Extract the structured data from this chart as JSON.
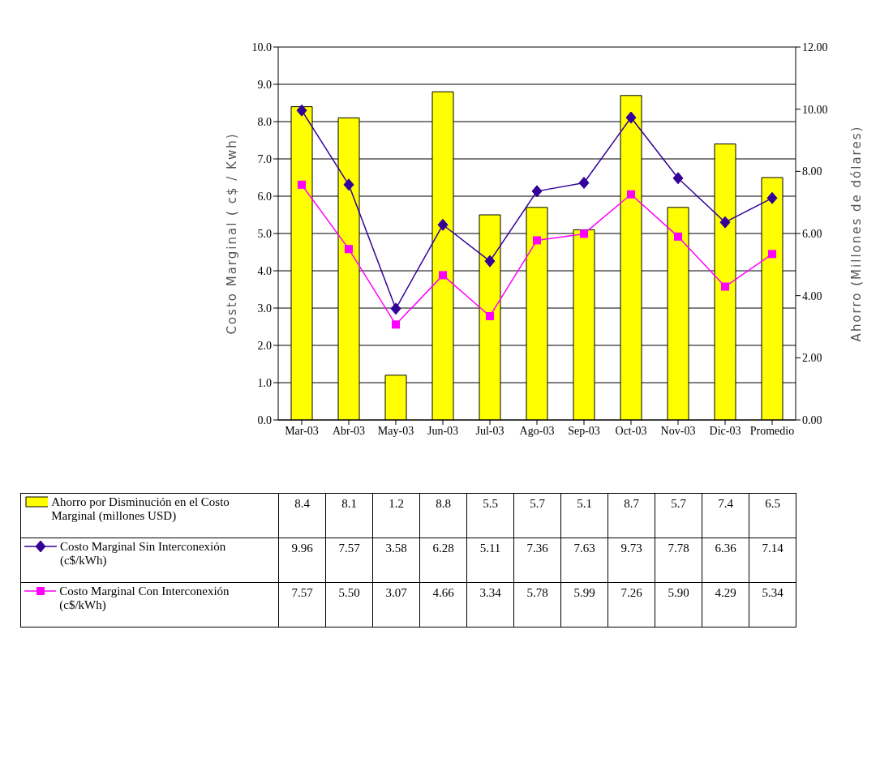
{
  "chart_data": {
    "type": "bar",
    "ylabel": "Costo Marginal ( c$ / Kwh)",
    "y2label": "Ahorro (Millones de dólares)",
    "categories": [
      "Mar-03",
      "Abr-03",
      "May-03",
      "Jun-03",
      "Jul-03",
      "Ago-03",
      "Sep-03",
      "Oct-03",
      "Nov-03",
      "Dic-03",
      "Promedio"
    ],
    "series": [
      {
        "name": "Ahorro por Disminución en el Costo Marginal (millones USD)",
        "axis": "y",
        "color": "#ffff00",
        "values": [
          8.4,
          8.1,
          1.2,
          8.8,
          5.5,
          5.7,
          5.1,
          8.7,
          5.7,
          7.4,
          6.5
        ],
        "value_labels": [
          "8.4",
          "8.1",
          "1.2",
          "8.8",
          "5.5",
          "5.7",
          "5.1",
          "8.7",
          "5.7",
          "7.4",
          "6.5"
        ]
      },
      {
        "name": "Costo Marginal Sin Interconexión (c$/kWh)",
        "type": "line",
        "axis": "y2",
        "color": "#330099",
        "marker": "diamond",
        "values": [
          9.96,
          7.57,
          3.58,
          6.28,
          5.11,
          7.36,
          7.63,
          9.73,
          7.78,
          6.36,
          7.14
        ],
        "value_labels": [
          "9.96",
          "7.57",
          "3.58",
          "6.28",
          "5.11",
          "7.36",
          "7.63",
          "9.73",
          "7.78",
          "6.36",
          "7.14"
        ]
      },
      {
        "name": "Costo Marginal Con Interconexión (c$/kWh)",
        "type": "line",
        "axis": "y2",
        "color": "#ff00ff",
        "marker": "square",
        "values": [
          7.57,
          5.5,
          3.07,
          4.66,
          3.34,
          5.78,
          5.99,
          7.26,
          5.9,
          4.29,
          5.34
        ],
        "value_labels": [
          "7.57",
          "5.50",
          "3.07",
          "4.66",
          "3.34",
          "5.78",
          "5.99",
          "7.26",
          "5.90",
          "4.29",
          "5.34"
        ]
      }
    ],
    "ylim": [
      0,
      10
    ],
    "yticks": [
      {
        "value": 0,
        "label": "0.0"
      },
      {
        "value": 1,
        "label": "1.0"
      },
      {
        "value": 2,
        "label": "2.0"
      },
      {
        "value": 3,
        "label": "3.0"
      },
      {
        "value": 4,
        "label": "4.0"
      },
      {
        "value": 5,
        "label": "5.0"
      },
      {
        "value": 6,
        "label": "6.0"
      },
      {
        "value": 7,
        "label": "7.0"
      },
      {
        "value": 8,
        "label": "8.0"
      },
      {
        "value": 9,
        "label": "9.0"
      },
      {
        "value": 10,
        "label": "10.0"
      }
    ],
    "y2lim": [
      0,
      12
    ],
    "y2ticks": [
      {
        "value": 0,
        "label": "0.00"
      },
      {
        "value": 2,
        "label": "2.00"
      },
      {
        "value": 4,
        "label": "4.00"
      },
      {
        "value": 6,
        "label": "6.00"
      },
      {
        "value": 8,
        "label": "8.00"
      },
      {
        "value": 10,
        "label": "10.00"
      },
      {
        "value": 12,
        "label": "12.00"
      }
    ],
    "grid": "y",
    "legend": "bottom",
    "line_style": "solid"
  }
}
